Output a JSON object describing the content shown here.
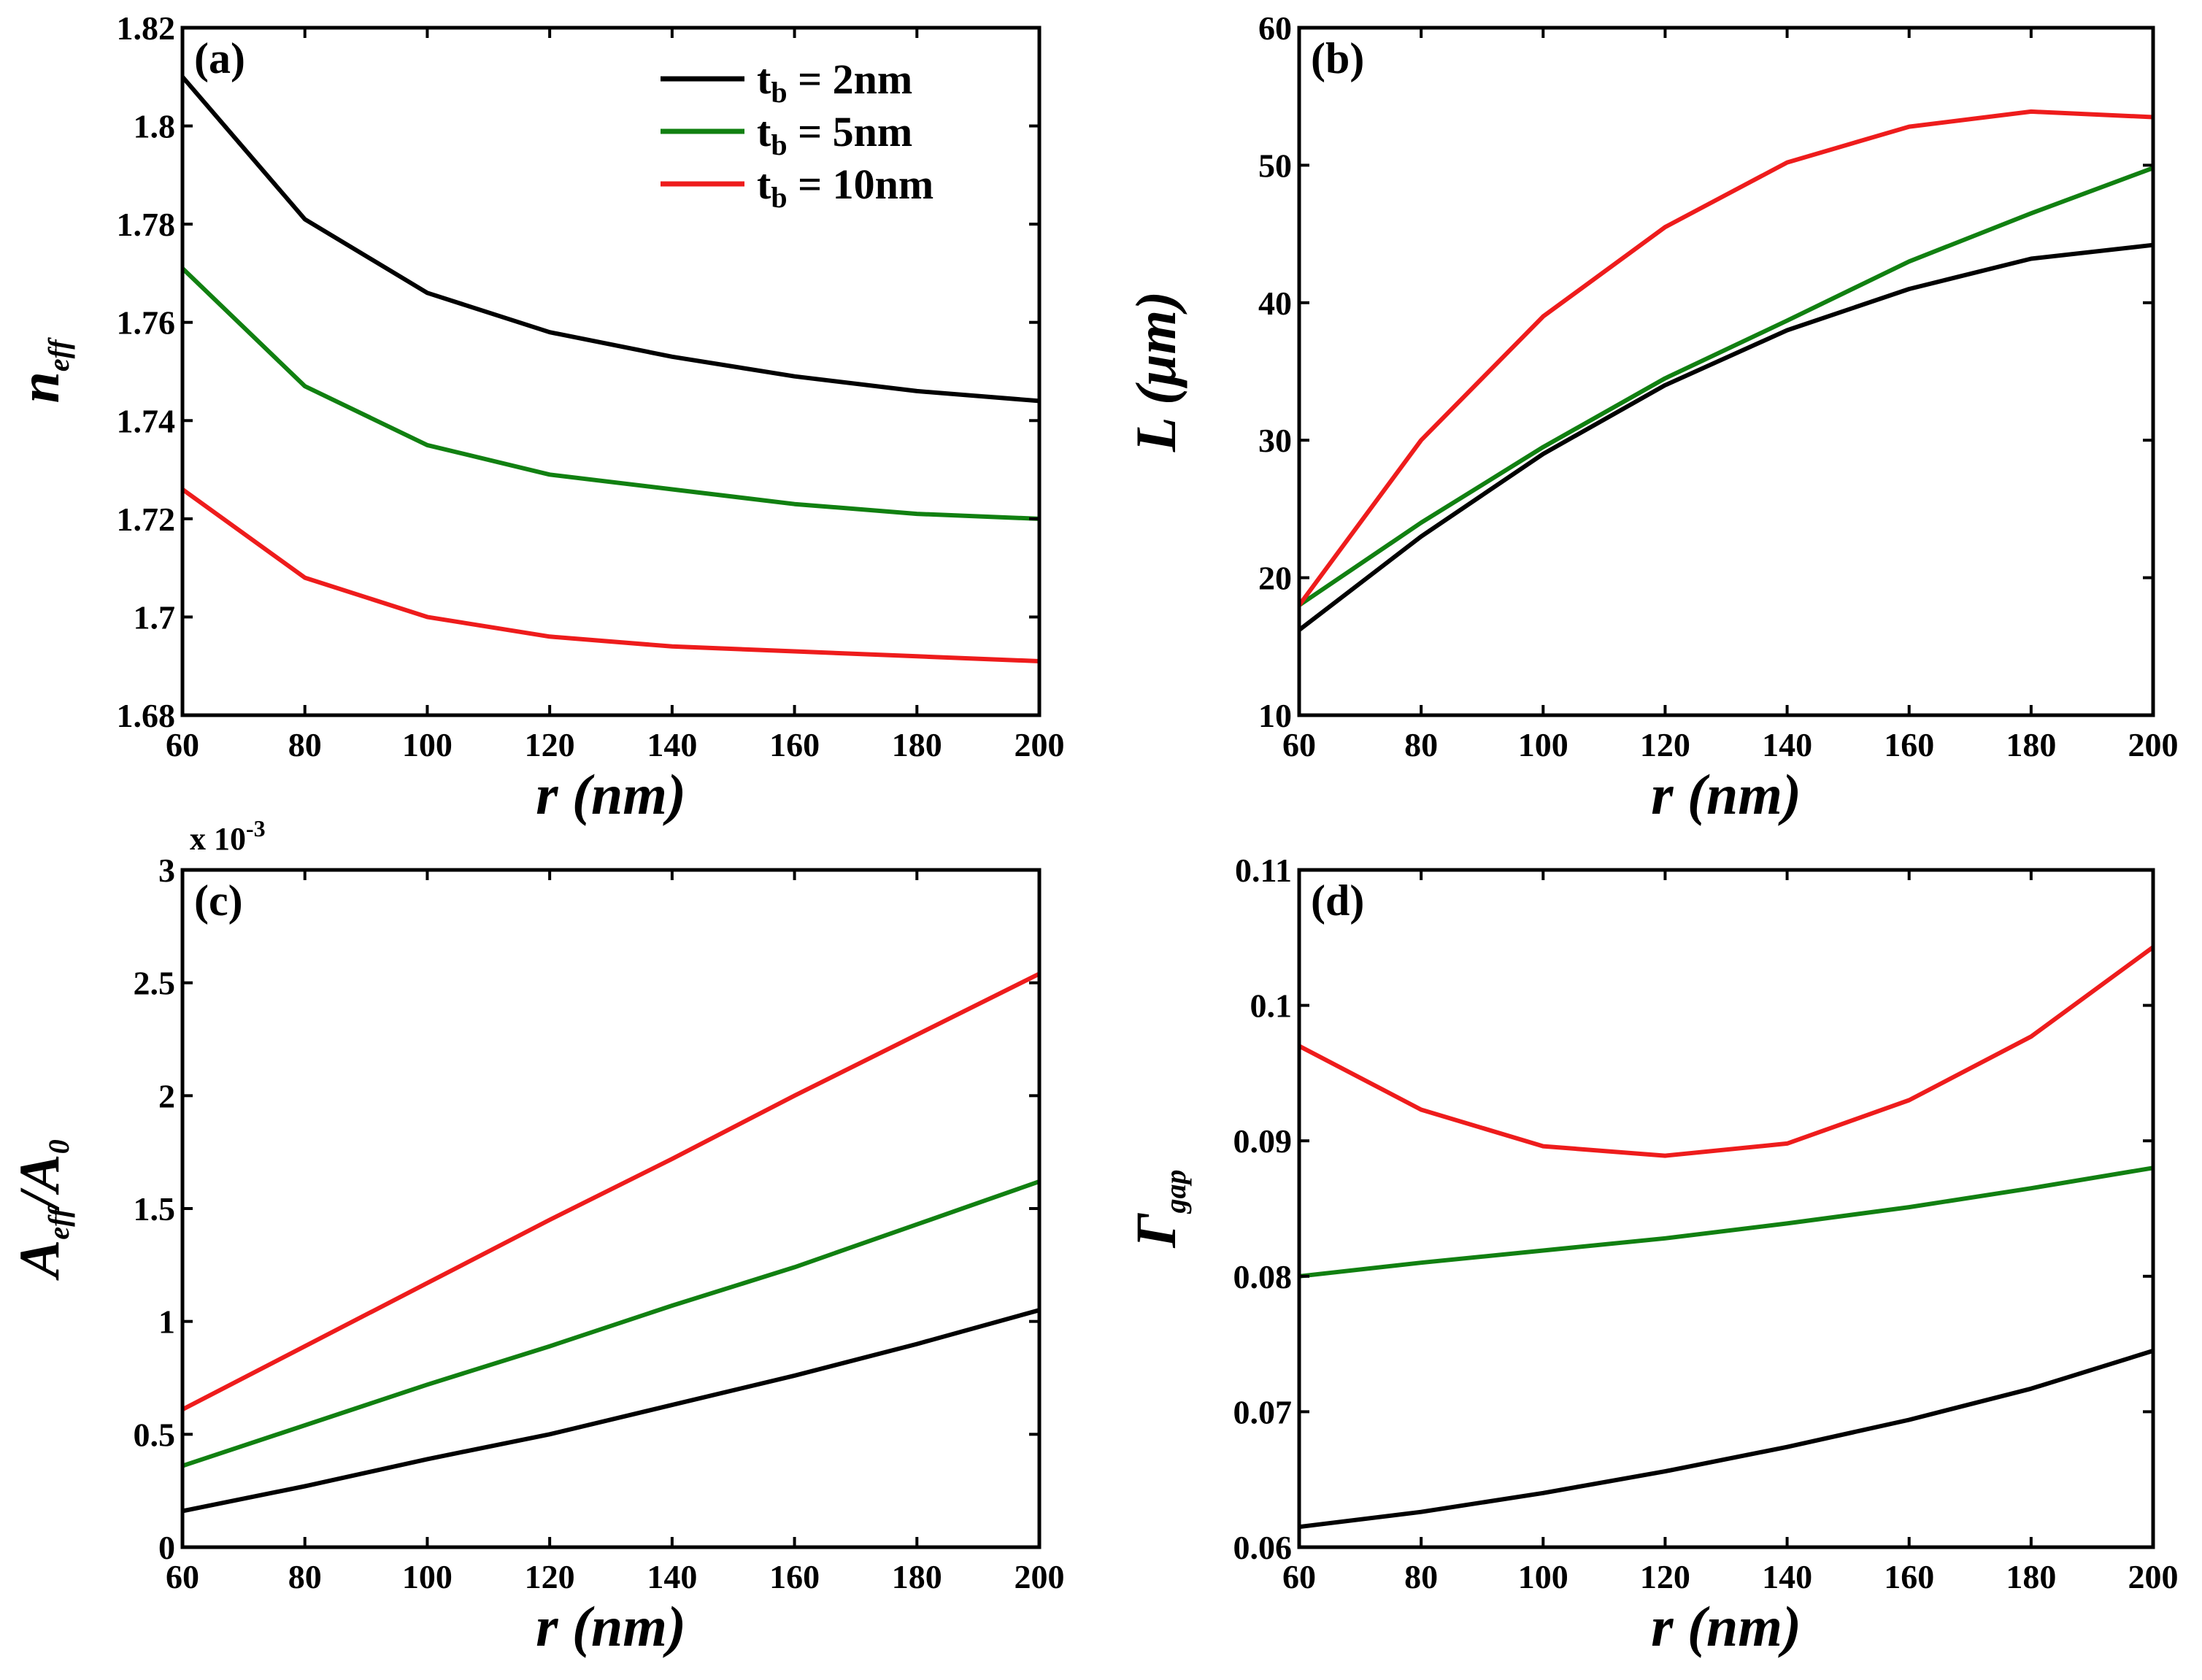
{
  "colors": {
    "tb_2nm": "#000000",
    "tb_5nm": "#118011",
    "tb_10nm": "#ee1c1c"
  },
  "legend": {
    "placement": "top-right of panel (a)",
    "entries": [
      {
        "main": "t",
        "sub": "b",
        "rest": " = 2nm",
        "color_key": "tb_2nm"
      },
      {
        "main": "t",
        "sub": "b",
        "rest": " = 5nm",
        "color_key": "tb_5nm"
      },
      {
        "main": "t",
        "sub": "b",
        "rest": " = 10nm",
        "color_key": "tb_10nm"
      }
    ]
  },
  "chart_data": [
    {
      "panel": "(a)",
      "type": "line",
      "xlabel": "r  (nm)",
      "ylabel_main": "n",
      "ylabel_sub": "eff",
      "ylabel_slash": "",
      "ylabel_main2": "",
      "ylabel_sub2": "",
      "xlim": [
        60,
        200
      ],
      "ylim": [
        1.68,
        1.82
      ],
      "xticks": [
        60,
        80,
        100,
        120,
        140,
        160,
        180,
        200
      ],
      "yticks": [
        1.68,
        1.7,
        1.72,
        1.74,
        1.76,
        1.78,
        1.8,
        1.82
      ],
      "ytick_labels": [
        "1.68",
        "1.7",
        "1.72",
        "1.74",
        "1.76",
        "1.78",
        "1.8",
        "1.82"
      ],
      "multiplier": "",
      "x": [
        60,
        80,
        100,
        120,
        140,
        160,
        180,
        200
      ],
      "series": [
        {
          "key": "tb_2nm",
          "values": [
            1.81,
            1.781,
            1.766,
            1.758,
            1.753,
            1.749,
            1.746,
            1.744
          ]
        },
        {
          "key": "tb_5nm",
          "values": [
            1.771,
            1.747,
            1.735,
            1.729,
            1.726,
            1.723,
            1.721,
            1.72
          ]
        },
        {
          "key": "tb_10nm",
          "values": [
            1.726,
            1.708,
            1.7,
            1.696,
            1.694,
            1.693,
            1.692,
            1.691
          ]
        }
      ]
    },
    {
      "panel": "(b)",
      "type": "line",
      "xlabel": "r  (nm)",
      "ylabel_main": "L (μm)",
      "ylabel_sub": "",
      "ylabel_slash": "",
      "ylabel_main2": "",
      "ylabel_sub2": "",
      "xlim": [
        60,
        200
      ],
      "ylim": [
        10,
        60
      ],
      "xticks": [
        60,
        80,
        100,
        120,
        140,
        160,
        180,
        200
      ],
      "yticks": [
        10,
        20,
        30,
        40,
        50,
        60
      ],
      "ytick_labels": [
        "10",
        "20",
        "30",
        "40",
        "50",
        "60"
      ],
      "multiplier": "",
      "x": [
        60,
        80,
        100,
        120,
        140,
        160,
        180,
        200
      ],
      "series": [
        {
          "key": "tb_2nm",
          "values": [
            16.2,
            23.0,
            29.0,
            34.0,
            38.0,
            41.0,
            43.2,
            44.2
          ]
        },
        {
          "key": "tb_5nm",
          "values": [
            18.0,
            24.0,
            29.5,
            34.5,
            38.7,
            43.0,
            46.5,
            49.8
          ]
        },
        {
          "key": "tb_10nm",
          "values": [
            18.0,
            30.0,
            39.0,
            45.5,
            50.2,
            52.8,
            53.9,
            53.5
          ]
        }
      ]
    },
    {
      "panel": "(c)",
      "type": "line",
      "xlabel": "r  (nm)",
      "ylabel_main": "A",
      "ylabel_sub": "eff",
      "ylabel_slash": "/",
      "ylabel_main2": "A",
      "ylabel_sub2": "0",
      "xlim": [
        60,
        200
      ],
      "ylim": [
        0,
        3
      ],
      "xticks": [
        60,
        80,
        100,
        120,
        140,
        160,
        180,
        200
      ],
      "yticks": [
        0,
        0.5,
        1,
        1.5,
        2,
        2.5,
        3
      ],
      "ytick_labels": [
        "0",
        "0.5",
        "1",
        "1.5",
        "2",
        "2.5",
        "3"
      ],
      "multiplier": "x 10",
      "multiplier_exp": "-3",
      "x": [
        60,
        80,
        100,
        120,
        140,
        160,
        180,
        200
      ],
      "series": [
        {
          "key": "tb_2nm",
          "values": [
            0.16,
            0.27,
            0.39,
            0.5,
            0.63,
            0.76,
            0.9,
            1.05
          ]
        },
        {
          "key": "tb_5nm",
          "values": [
            0.36,
            0.54,
            0.72,
            0.89,
            1.07,
            1.24,
            1.43,
            1.62
          ]
        },
        {
          "key": "tb_10nm",
          "values": [
            0.61,
            0.89,
            1.17,
            1.45,
            1.72,
            2.0,
            2.27,
            2.54
          ]
        }
      ]
    },
    {
      "panel": "(d)",
      "type": "line",
      "xlabel": "r  (nm)",
      "ylabel_main": "Γ",
      "ylabel_sub": "gap",
      "ylabel_slash": "",
      "ylabel_main2": "",
      "ylabel_sub2": "",
      "xlim": [
        60,
        200
      ],
      "ylim": [
        0.06,
        0.11
      ],
      "xticks": [
        60,
        80,
        100,
        120,
        140,
        160,
        180,
        200
      ],
      "yticks": [
        0.06,
        0.07,
        0.08,
        0.09,
        0.1,
        0.11
      ],
      "ytick_labels": [
        "0.06",
        "0.07",
        "0.08",
        "0.09",
        "0.1",
        "0.11"
      ],
      "multiplier": "",
      "x": [
        60,
        80,
        100,
        120,
        140,
        160,
        180,
        200
      ],
      "series": [
        {
          "key": "tb_2nm",
          "values": [
            0.0615,
            0.0626,
            0.064,
            0.0656,
            0.0674,
            0.0694,
            0.0717,
            0.0745
          ]
        },
        {
          "key": "tb_5nm",
          "values": [
            0.08,
            0.081,
            0.0819,
            0.0828,
            0.0839,
            0.0851,
            0.0865,
            0.088
          ]
        },
        {
          "key": "tb_10nm",
          "values": [
            0.097,
            0.0923,
            0.0896,
            0.0889,
            0.0898,
            0.093,
            0.0977,
            0.1043
          ]
        }
      ]
    }
  ]
}
